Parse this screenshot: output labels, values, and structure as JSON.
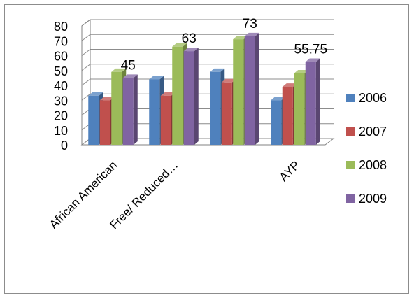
{
  "chart_data": {
    "type": "bar",
    "categories": [
      "African American",
      "Free/ Reduced…",
      "",
      "AYP"
    ],
    "series": [
      {
        "name": "2006",
        "values": [
          33,
          44,
          49,
          30
        ]
      },
      {
        "name": "2007",
        "values": [
          30,
          33,
          42,
          39
        ]
      },
      {
        "name": "2008",
        "values": [
          49,
          66,
          71,
          48
        ]
      },
      {
        "name": "2009",
        "values": [
          45,
          63,
          73,
          55.75
        ]
      }
    ],
    "data_labels": [
      {
        "series": "2009",
        "category_index": 0,
        "text": "45"
      },
      {
        "series": "2009",
        "category_index": 1,
        "text": "63"
      },
      {
        "series": "2009",
        "category_index": 2,
        "text": "73"
      },
      {
        "series": "2009",
        "category_index": 3,
        "text": "55.75"
      }
    ],
    "ylim": [
      0,
      80
    ],
    "yticks": [
      0,
      10,
      20,
      30,
      40,
      50,
      60,
      70,
      80
    ],
    "grid": true,
    "legend": "right",
    "style": "3d-column",
    "colors": {
      "2006": "#4F81BD",
      "2007": "#C0504D",
      "2008": "#9BBB59",
      "2009": "#8064A2",
      "grid": "#8c8c8c",
      "axis": "#808080"
    }
  }
}
